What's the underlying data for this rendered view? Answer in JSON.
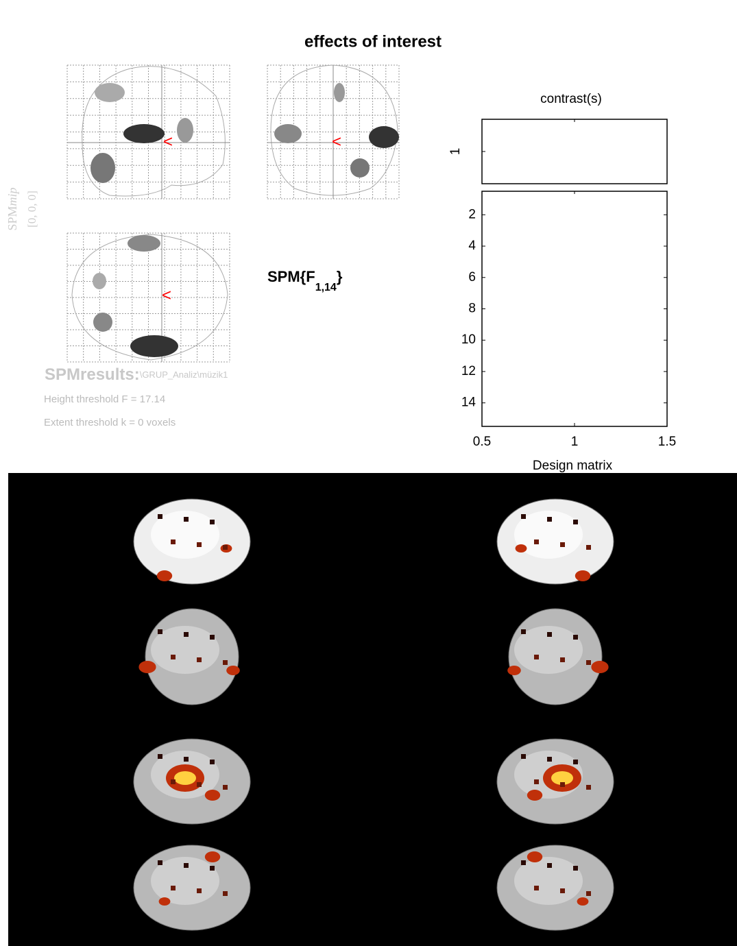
{
  "title": "effects of interest",
  "mip": {
    "label": "SPM",
    "label_italic": "mip",
    "coords": "[0, 0, 0]"
  },
  "statistic": {
    "text": "SPM{F",
    "subscript": "1,14",
    "close": "}"
  },
  "results": {
    "title": "SPMresults:",
    "path": "\\GRUP_Analiz\\müzik1",
    "height_threshold": "Height threshold F = 17.14",
    "extent_threshold": "Extent threshold k = 0 voxels"
  },
  "contrast": {
    "title": "contrast(s)",
    "yticks": [
      1
    ],
    "ylim": [
      0.5,
      1.5
    ]
  },
  "design_matrix": {
    "xlabel": "Design matrix",
    "xlim": [
      0.5,
      1.5
    ],
    "xticks": [
      0.5,
      1,
      1.5
    ],
    "ylim": [
      0.5,
      15.5
    ],
    "yticks": [
      2,
      4,
      6,
      8,
      10,
      12,
      14
    ]
  }
}
